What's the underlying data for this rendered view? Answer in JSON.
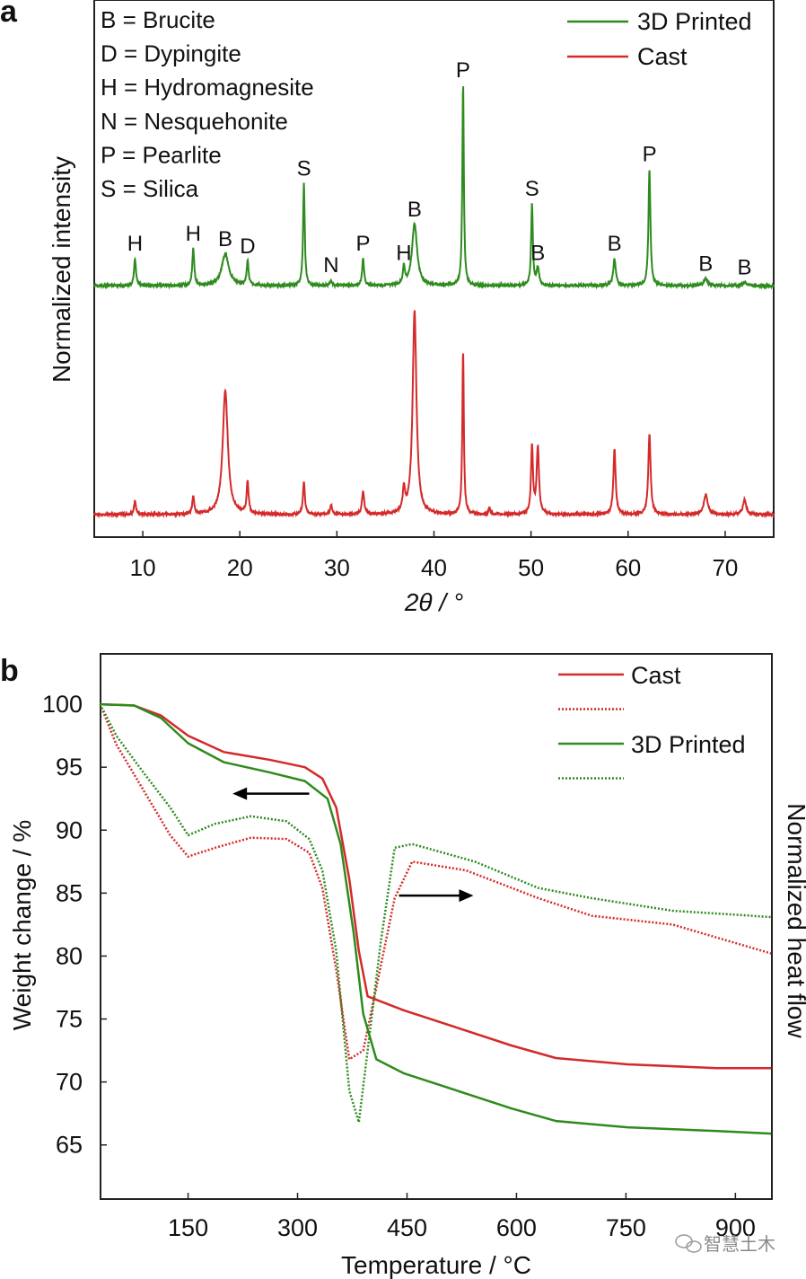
{
  "colors": {
    "printed": "#2e8b1e",
    "cast": "#d42a2a",
    "axis": "#222222"
  },
  "watermark": "智慧土木",
  "chart_data": [
    {
      "panel": "a",
      "type": "line",
      "xlabel": "2θ / °",
      "ylabel": "Normalized intensity",
      "xlim": [
        5,
        75
      ],
      "ylim": [
        0,
        1
      ],
      "xticks": [
        10,
        20,
        30,
        40,
        50,
        60,
        70
      ],
      "legend_position": "top-right",
      "phase_key": [
        "B = Brucite",
        "D = Dypingite",
        "H = Hydromagnesite",
        "N = Nesquehonite",
        "P = Pearlite",
        "S = Silica"
      ],
      "series": [
        {
          "name": "3D Printed",
          "color_key": "printed",
          "baseline": 0.468,
          "peaks": [
            {
              "x": 9.2,
              "h": 0.05,
              "w": 0.15,
              "label": "H"
            },
            {
              "x": 15.2,
              "h": 0.069,
              "w": 0.15,
              "label": "H"
            },
            {
              "x": 18.5,
              "h": 0.059,
              "w": 0.55,
              "label": "B"
            },
            {
              "x": 20.8,
              "h": 0.045,
              "w": 0.15,
              "label": "D"
            },
            {
              "x": 26.6,
              "h": 0.19,
              "w": 0.13,
              "label": "S"
            },
            {
              "x": 29.4,
              "h": 0.01,
              "w": 0.15,
              "label": "N"
            },
            {
              "x": 32.7,
              "h": 0.05,
              "w": 0.15,
              "label": "P"
            },
            {
              "x": 36.9,
              "h": 0.033,
              "w": 0.15,
              "label": "H"
            },
            {
              "x": 38.0,
              "h": 0.114,
              "w": 0.4,
              "label": "B"
            },
            {
              "x": 43.0,
              "h": 0.373,
              "w": 0.12,
              "label": "P"
            },
            {
              "x": 50.1,
              "h": 0.152,
              "w": 0.13,
              "label": "S"
            },
            {
              "x": 50.7,
              "h": 0.033,
              "w": 0.2,
              "label": "B"
            },
            {
              "x": 58.6,
              "h": 0.05,
              "w": 0.2,
              "label": "B"
            },
            {
              "x": 62.2,
              "h": 0.217,
              "w": 0.15,
              "label": "P"
            },
            {
              "x": 68.0,
              "h": 0.013,
              "w": 0.3,
              "label": "B"
            },
            {
              "x": 72.0,
              "h": 0.006,
              "w": 0.3,
              "label": "B"
            }
          ]
        },
        {
          "name": "Cast",
          "color_key": "cast",
          "baseline": 0.042,
          "peaks": [
            {
              "x": 9.2,
              "h": 0.025,
              "w": 0.15
            },
            {
              "x": 15.2,
              "h": 0.033,
              "w": 0.15
            },
            {
              "x": 18.5,
              "h": 0.231,
              "w": 0.4
            },
            {
              "x": 20.8,
              "h": 0.06,
              "w": 0.15
            },
            {
              "x": 26.6,
              "h": 0.06,
              "w": 0.15
            },
            {
              "x": 29.4,
              "h": 0.017,
              "w": 0.15
            },
            {
              "x": 32.7,
              "h": 0.043,
              "w": 0.17
            },
            {
              "x": 36.9,
              "h": 0.043,
              "w": 0.17
            },
            {
              "x": 38.0,
              "h": 0.378,
              "w": 0.3
            },
            {
              "x": 43.0,
              "h": 0.303,
              "w": 0.12
            },
            {
              "x": 45.7,
              "h": 0.012,
              "w": 0.15
            },
            {
              "x": 50.1,
              "h": 0.127,
              "w": 0.15
            },
            {
              "x": 50.7,
              "h": 0.124,
              "w": 0.18
            },
            {
              "x": 58.6,
              "h": 0.12,
              "w": 0.18
            },
            {
              "x": 62.2,
              "h": 0.149,
              "w": 0.18
            },
            {
              "x": 68.0,
              "h": 0.037,
              "w": 0.3
            },
            {
              "x": 72.0,
              "h": 0.028,
              "w": 0.25
            }
          ]
        }
      ]
    },
    {
      "panel": "b",
      "type": "line",
      "xlabel": "Temperature / °C",
      "ylabel": "Weight change / %",
      "ylabel_right": "Normalized heat flow",
      "xlim": [
        30,
        950
      ],
      "ylim": [
        60.7,
        104
      ],
      "xticks": [
        150,
        300,
        450,
        600,
        750,
        900
      ],
      "yticks": [
        65,
        70,
        75,
        80,
        85,
        90,
        95,
        100
      ],
      "legend_position": "top-right",
      "legend": [
        "Cast",
        "",
        "3D Printed",
        ""
      ],
      "annotations": [
        {
          "type": "arrow",
          "from": [
            316,
            92.9
          ],
          "to": [
            211,
            92.9
          ],
          "meaning": "left axis"
        },
        {
          "type": "arrow",
          "from": [
            439,
            84.8
          ],
          "to": [
            541,
            84.8
          ],
          "meaning": "right axis"
        }
      ],
      "series": [
        {
          "name": "Cast",
          "quantity": "weight",
          "style": "solid",
          "color_key": "cast",
          "points": [
            [
              29.5,
              100
            ],
            [
              76,
              99.9
            ],
            [
              113,
              99.1
            ],
            [
              150,
              97.5
            ],
            [
              199,
              96.2
            ],
            [
              261,
              95.6
            ],
            [
              310,
              95
            ],
            [
              334,
              94.1
            ],
            [
              353,
              91.8
            ],
            [
              371,
              86.1
            ],
            [
              384,
              80.4
            ],
            [
              396,
              76.8
            ],
            [
              445,
              75.7
            ],
            [
              519,
              74.3
            ],
            [
              593,
              72.9
            ],
            [
              654,
              71.9
            ],
            [
              752,
              71.4
            ],
            [
              875,
              71.1
            ],
            [
              949,
              71.1
            ]
          ]
        },
        {
          "name": "Cast heat flow",
          "quantity": "heat_flow",
          "style": "dotted",
          "color_key": "cast",
          "points": [
            [
              29.5,
              100
            ],
            [
              51.6,
              96.8
            ],
            [
              88.5,
              93.2
            ],
            [
              125.4,
              89.6
            ],
            [
              150,
              87.9
            ],
            [
              186.9,
              88.6
            ],
            [
              236,
              89.4
            ],
            [
              285,
              89.3
            ],
            [
              316,
              88.2
            ],
            [
              334,
              85.4
            ],
            [
              353,
              78.9
            ],
            [
              371,
              71.8
            ],
            [
              390,
              72.5
            ],
            [
              408,
              77.5
            ],
            [
              433,
              84.6
            ],
            [
              457,
              87.5
            ],
            [
              531,
              86.8
            ],
            [
              630,
              84.6
            ],
            [
              703,
              83.2
            ],
            [
              814,
              82.5
            ],
            [
              949,
              80.2
            ]
          ]
        },
        {
          "name": "3D Printed",
          "quantity": "weight",
          "style": "solid",
          "color_key": "printed",
          "points": [
            [
              29.5,
              100
            ],
            [
              76,
              99.9
            ],
            [
              113,
              98.9
            ],
            [
              150,
              96.9
            ],
            [
              199,
              95.4
            ],
            [
              261,
              94.6
            ],
            [
              310,
              93.9
            ],
            [
              341,
              92.5
            ],
            [
              359,
              88.9
            ],
            [
              377,
              81.8
            ],
            [
              390,
              75.4
            ],
            [
              408,
              71.8
            ],
            [
              445,
              70.7
            ],
            [
              519,
              69.3
            ],
            [
              593,
              67.9
            ],
            [
              654,
              66.9
            ],
            [
              752,
              66.4
            ],
            [
              875,
              66.1
            ],
            [
              949,
              65.9
            ]
          ]
        },
        {
          "name": "3D Printed heat flow",
          "quantity": "heat_flow",
          "style": "dotted",
          "color_key": "printed",
          "points": [
            [
              29.5,
              100
            ],
            [
              51.6,
              97.5
            ],
            [
              88.5,
              94.6
            ],
            [
              125.4,
              91.8
            ],
            [
              150,
              89.6
            ],
            [
              186.9,
              90.5
            ],
            [
              236,
              91.1
            ],
            [
              285,
              90.7
            ],
            [
              316,
              89.3
            ],
            [
              334,
              86.8
            ],
            [
              353,
              80.4
            ],
            [
              371,
              69.3
            ],
            [
              384,
              66.8
            ],
            [
              396,
              72.5
            ],
            [
              414,
              81.1
            ],
            [
              433,
              88.6
            ],
            [
              457,
              88.9
            ],
            [
              543,
              87.5
            ],
            [
              630,
              85.4
            ],
            [
              703,
              84.6
            ],
            [
              814,
              83.6
            ],
            [
              949,
              83.1
            ]
          ]
        }
      ]
    }
  ],
  "panels": {
    "a": "a",
    "b": "b"
  }
}
